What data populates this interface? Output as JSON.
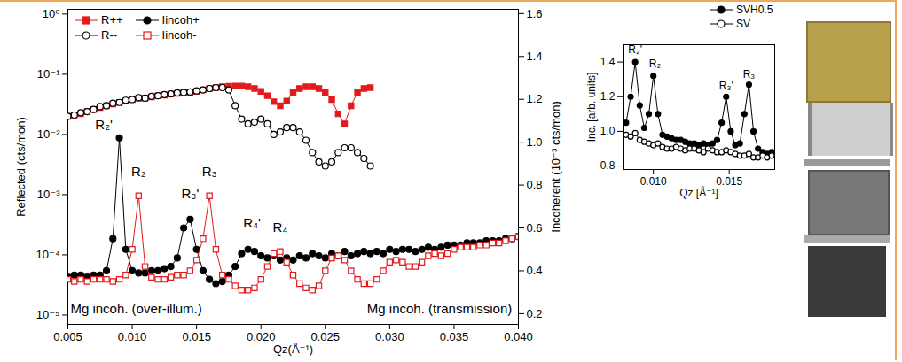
{
  "chart_data": [
    {
      "type": "line",
      "x_label": "Qz(Å⁻¹)",
      "y_label": "Reflected (cts/mon)",
      "y2_label": "Incoherent (10⁻³ cts/mon)",
      "log": "y",
      "grid": false,
      "legend": "top-left",
      "xlim": [
        0.005,
        0.04
      ],
      "xticks": [
        0.005,
        {
          "value": 0.01,
          "label": "0.010"
        },
        0.015,
        {
          "value": 0.02,
          "label": "0.020"
        },
        0.025,
        {
          "value": 0.03,
          "label": "0.030"
        },
        0.035,
        {
          "value": 0.04,
          "label": "0.040"
        }
      ],
      "ylim": [
        7e-06,
        1.2
      ],
      "yticks": [
        {
          "value": 1e-05,
          "label": "10⁻⁵"
        },
        {
          "value": 0.0001,
          "label": "10⁻⁴"
        },
        {
          "value": 0.001,
          "label": "10⁻³"
        },
        {
          "value": 0.01,
          "label": "10⁻²"
        },
        {
          "value": 0.1,
          "label": "10⁻¹"
        },
        {
          "value": 1,
          "label": "10⁰"
        }
      ],
      "y2lim": [
        0.15,
        1.62
      ],
      "y2ticks": [
        0.2,
        0.4,
        0.6,
        0.8,
        {
          "value": 1,
          "label": "1.0"
        },
        1.2,
        1.4,
        1.6
      ],
      "x": [
        0.005,
        0.0055,
        0.006,
        0.0065,
        0.007,
        0.0075,
        0.008,
        0.0085,
        0.009,
        0.0095,
        0.01,
        0.0105,
        0.011,
        0.0115,
        0.012,
        0.0125,
        0.013,
        0.0135,
        0.014,
        0.0145,
        0.015,
        0.0155,
        0.016,
        0.0165,
        0.017,
        0.0175,
        0.018,
        0.0185,
        0.019,
        0.0195,
        0.02,
        0.0205,
        0.021,
        0.0215,
        0.022,
        0.0225,
        0.023,
        0.0235,
        0.024,
        0.0245,
        0.025,
        0.0255,
        0.026,
        0.0265,
        0.027,
        0.0275,
        0.028,
        0.0285,
        0.029,
        0.0295,
        0.03,
        0.0305,
        0.031,
        0.0315,
        0.032,
        0.0325,
        0.033,
        0.0335,
        0.034,
        0.0345,
        0.035,
        0.0355,
        0.036,
        0.0365,
        0.037,
        0.0375,
        0.038,
        0.0385,
        0.039,
        0.0395,
        0.04
      ],
      "series": [
        {
          "name": "R++",
          "color": "#e31a1c",
          "marker": "square",
          "line_style": "solid",
          "values": [
            0.02,
            0.021,
            0.022,
            0.024,
            0.026,
            0.028,
            0.03,
            0.032,
            0.034,
            0.036,
            0.038,
            0.04,
            0.04,
            0.042,
            0.044,
            0.045,
            0.047,
            0.048,
            0.05,
            0.05,
            0.052,
            0.055,
            0.058,
            0.06,
            0.062,
            0.063,
            0.064,
            0.064,
            0.062,
            0.058,
            0.052,
            0.044,
            0.035,
            0.03,
            0.036,
            0.05,
            0.058,
            0.062,
            0.062,
            0.058,
            0.05,
            0.038,
            0.022,
            0.015,
            0.03,
            0.05,
            0.058,
            0.06,
            null,
            null,
            null,
            null,
            null,
            null,
            null,
            null,
            null,
            null,
            null,
            null,
            null,
            null,
            null,
            null,
            null,
            null,
            null,
            null,
            null,
            null,
            null
          ]
        },
        {
          "name": "R--",
          "color": "#000000",
          "marker": "circle-open",
          "line_style": "solid",
          "values": [
            0.02,
            0.021,
            0.023,
            0.024,
            0.026,
            0.029,
            0.03,
            0.033,
            0.034,
            0.037,
            0.038,
            0.041,
            0.04,
            0.043,
            0.044,
            0.046,
            0.047,
            0.049,
            0.05,
            0.051,
            0.053,
            0.055,
            0.058,
            0.06,
            0.06,
            0.055,
            0.03,
            0.018,
            0.015,
            0.016,
            0.018,
            0.015,
            0.01,
            0.011,
            0.013,
            0.013,
            0.011,
            0.008,
            0.005,
            0.0035,
            0.003,
            0.0035,
            0.005,
            0.006,
            0.006,
            0.005,
            0.004,
            0.003,
            null,
            null,
            null,
            null,
            null,
            null,
            null,
            null,
            null,
            null,
            null,
            null,
            null,
            null,
            null,
            null,
            null,
            null,
            null,
            null,
            null,
            null,
            null
          ]
        },
        {
          "name": "Iincoh+",
          "color": "#000000",
          "marker": "circle",
          "line_style": "solid",
          "axis": "y2",
          "values": [
            0.37,
            0.38,
            0.38,
            0.37,
            0.38,
            0.38,
            0.4,
            0.55,
            1.02,
            0.5,
            0.4,
            0.39,
            0.39,
            0.4,
            0.4,
            0.41,
            0.42,
            0.46,
            0.6,
            0.64,
            0.5,
            0.4,
            0.36,
            0.34,
            0.35,
            0.38,
            0.42,
            0.48,
            0.5,
            0.49,
            0.47,
            0.46,
            0.47,
            0.45,
            0.46,
            0.45,
            0.47,
            0.46,
            0.48,
            0.47,
            0.46,
            0.48,
            0.47,
            0.49,
            0.47,
            0.48,
            0.49,
            0.48,
            0.49,
            0.48,
            0.5,
            0.49,
            0.5,
            0.5,
            0.49,
            0.5,
            0.51,
            0.5,
            0.51,
            0.52,
            0.52,
            0.52,
            0.53,
            0.53,
            0.53,
            0.54,
            0.54,
            0.54,
            0.55,
            0.55,
            0.56
          ]
        },
        {
          "name": "Iincoh-",
          "color": "#e31a1c",
          "marker": "square-open",
          "line_style": "solid",
          "axis": "y2",
          "values": [
            0.36,
            0.35,
            0.36,
            0.35,
            0.36,
            0.36,
            0.36,
            0.35,
            0.36,
            0.38,
            0.5,
            0.75,
            0.42,
            0.37,
            0.36,
            0.36,
            0.37,
            0.38,
            0.38,
            0.4,
            0.45,
            0.55,
            0.75,
            0.5,
            0.38,
            0.36,
            0.33,
            0.31,
            0.31,
            0.32,
            0.36,
            0.42,
            0.48,
            0.49,
            0.44,
            0.38,
            0.34,
            0.32,
            0.31,
            0.33,
            0.4,
            0.46,
            0.47,
            0.45,
            0.4,
            0.36,
            0.34,
            0.34,
            0.36,
            0.4,
            0.44,
            0.45,
            0.44,
            0.42,
            0.42,
            0.44,
            0.47,
            0.48,
            0.47,
            0.48,
            0.5,
            0.51,
            0.51,
            0.51,
            0.52,
            0.52,
            0.53,
            0.53,
            0.54,
            0.55,
            0.56
          ]
        }
      ],
      "annotations": [
        {
          "text": "R₂'",
          "x": 0.0078,
          "y": 1.08,
          "axis": "y2"
        },
        {
          "text": "R₂",
          "x": 0.0105,
          "y": 0.86,
          "axis": "y2"
        },
        {
          "text": "R₃'",
          "x": 0.0145,
          "y": 0.76,
          "axis": "y2"
        },
        {
          "text": "R₃",
          "x": 0.016,
          "y": 0.86,
          "axis": "y2"
        },
        {
          "text": "R₄'",
          "x": 0.0193,
          "y": 0.62,
          "axis": "y2"
        },
        {
          "text": "R₄",
          "x": 0.0215,
          "y": 0.6,
          "axis": "y2"
        },
        {
          "text": "Mg incoh. (over-illum.)",
          "x": 0.0052,
          "y": 0.22,
          "axis": "y2"
        },
        {
          "text": "Mg incoh. (transmission)",
          "x": 0.0395,
          "y": 0.22,
          "axis": "y2"
        }
      ]
    },
    {
      "type": "line",
      "x_label": "Qz [Å⁻¹]",
      "y_label": "Inc. [arb. units]",
      "grid": false,
      "legend": "top",
      "xlim": [
        0.008,
        0.018
      ],
      "xticks": [
        {
          "value": 0.01,
          "label": "0.010"
        },
        0.015
      ],
      "ylim": [
        0.78,
        1.5
      ],
      "yticks": [
        0.8,
        {
          "value": 1,
          "label": "1.0"
        },
        1.2,
        1.4
      ],
      "x": [
        0.0082,
        0.0085,
        0.0088,
        0.0091,
        0.0094,
        0.0097,
        0.01,
        0.0103,
        0.0106,
        0.0109,
        0.0112,
        0.0115,
        0.0118,
        0.0121,
        0.0124,
        0.0127,
        0.013,
        0.0133,
        0.0136,
        0.0139,
        0.0142,
        0.0145,
        0.0148,
        0.0151,
        0.0154,
        0.0157,
        0.016,
        0.0163,
        0.0166,
        0.0169,
        0.0172,
        0.0175,
        0.0178
      ],
      "series": [
        {
          "name": "SVH0.5",
          "color": "#000000",
          "marker": "circle",
          "line_style": "solid",
          "values": [
            1.05,
            1.2,
            1.4,
            1.15,
            1.02,
            1.1,
            1.32,
            1.1,
            0.98,
            0.97,
            0.96,
            0.95,
            0.95,
            0.94,
            0.93,
            0.93,
            0.92,
            0.93,
            0.92,
            0.93,
            0.95,
            1.05,
            1.2,
            1.0,
            0.92,
            0.93,
            1.1,
            1.27,
            1.0,
            0.9,
            0.88,
            0.87,
            0.88
          ]
        },
        {
          "name": "SV",
          "color": "#000000",
          "marker": "circle-open",
          "line_style": "solid",
          "values": [
            0.98,
            0.97,
            0.99,
            0.95,
            0.94,
            0.93,
            0.92,
            0.93,
            0.91,
            0.9,
            0.9,
            0.91,
            0.9,
            0.89,
            0.9,
            0.9,
            0.89,
            0.88,
            0.9,
            0.89,
            0.88,
            0.88,
            0.89,
            0.88,
            0.87,
            0.86,
            0.86,
            0.87,
            0.85,
            0.85,
            0.86,
            0.85,
            0.86
          ]
        }
      ],
      "annotations": [
        {
          "text": "R₂'",
          "x": 0.0088,
          "y": 1.47
        },
        {
          "text": "R₂",
          "x": 0.0101,
          "y": 1.39
        },
        {
          "text": "R₃'",
          "x": 0.0148,
          "y": 1.26
        },
        {
          "text": "R₃",
          "x": 0.0163,
          "y": 1.33
        }
      ]
    }
  ]
}
